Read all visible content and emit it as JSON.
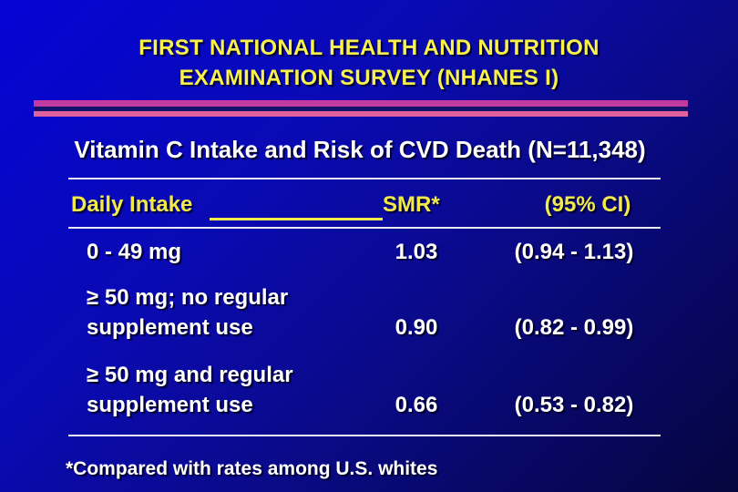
{
  "slide": {
    "title_line1": "FIRST NATIONAL HEALTH AND NUTRITION",
    "title_line2": "EXAMINATION SURVEY (NHANES I)",
    "subtitle": "Vitamin C Intake and Risk of CVD Death (N=11,348)",
    "footnote": "*Compared with rates among U.S. whites"
  },
  "table": {
    "header": {
      "col1": "Daily Intake",
      "col2": "SMR*",
      "col3": "(95% CI)"
    },
    "rows": [
      {
        "intake": "0 - 49 mg",
        "smr": "1.03",
        "ci": "(0.94 - 1.13)"
      },
      {
        "intake": "≥ 50 mg; no regular supplement use",
        "smr": "0.90",
        "ci": "(0.82 - 0.99)"
      },
      {
        "intake": "≥ 50 mg and regular supplement use",
        "smr": "0.66",
        "ci": "(0.53 - 0.82)"
      }
    ]
  },
  "colors": {
    "background_top_left": "#0404d6",
    "background_bottom_right": "#05053e",
    "title_yellow": "#f8f14e",
    "header_yellow": "#f2ea4b",
    "body_white": "#ffffff",
    "divider_magenta": "#c13aa1",
    "divider_pink": "#df629e",
    "rule_white": "#e9e9f2"
  }
}
